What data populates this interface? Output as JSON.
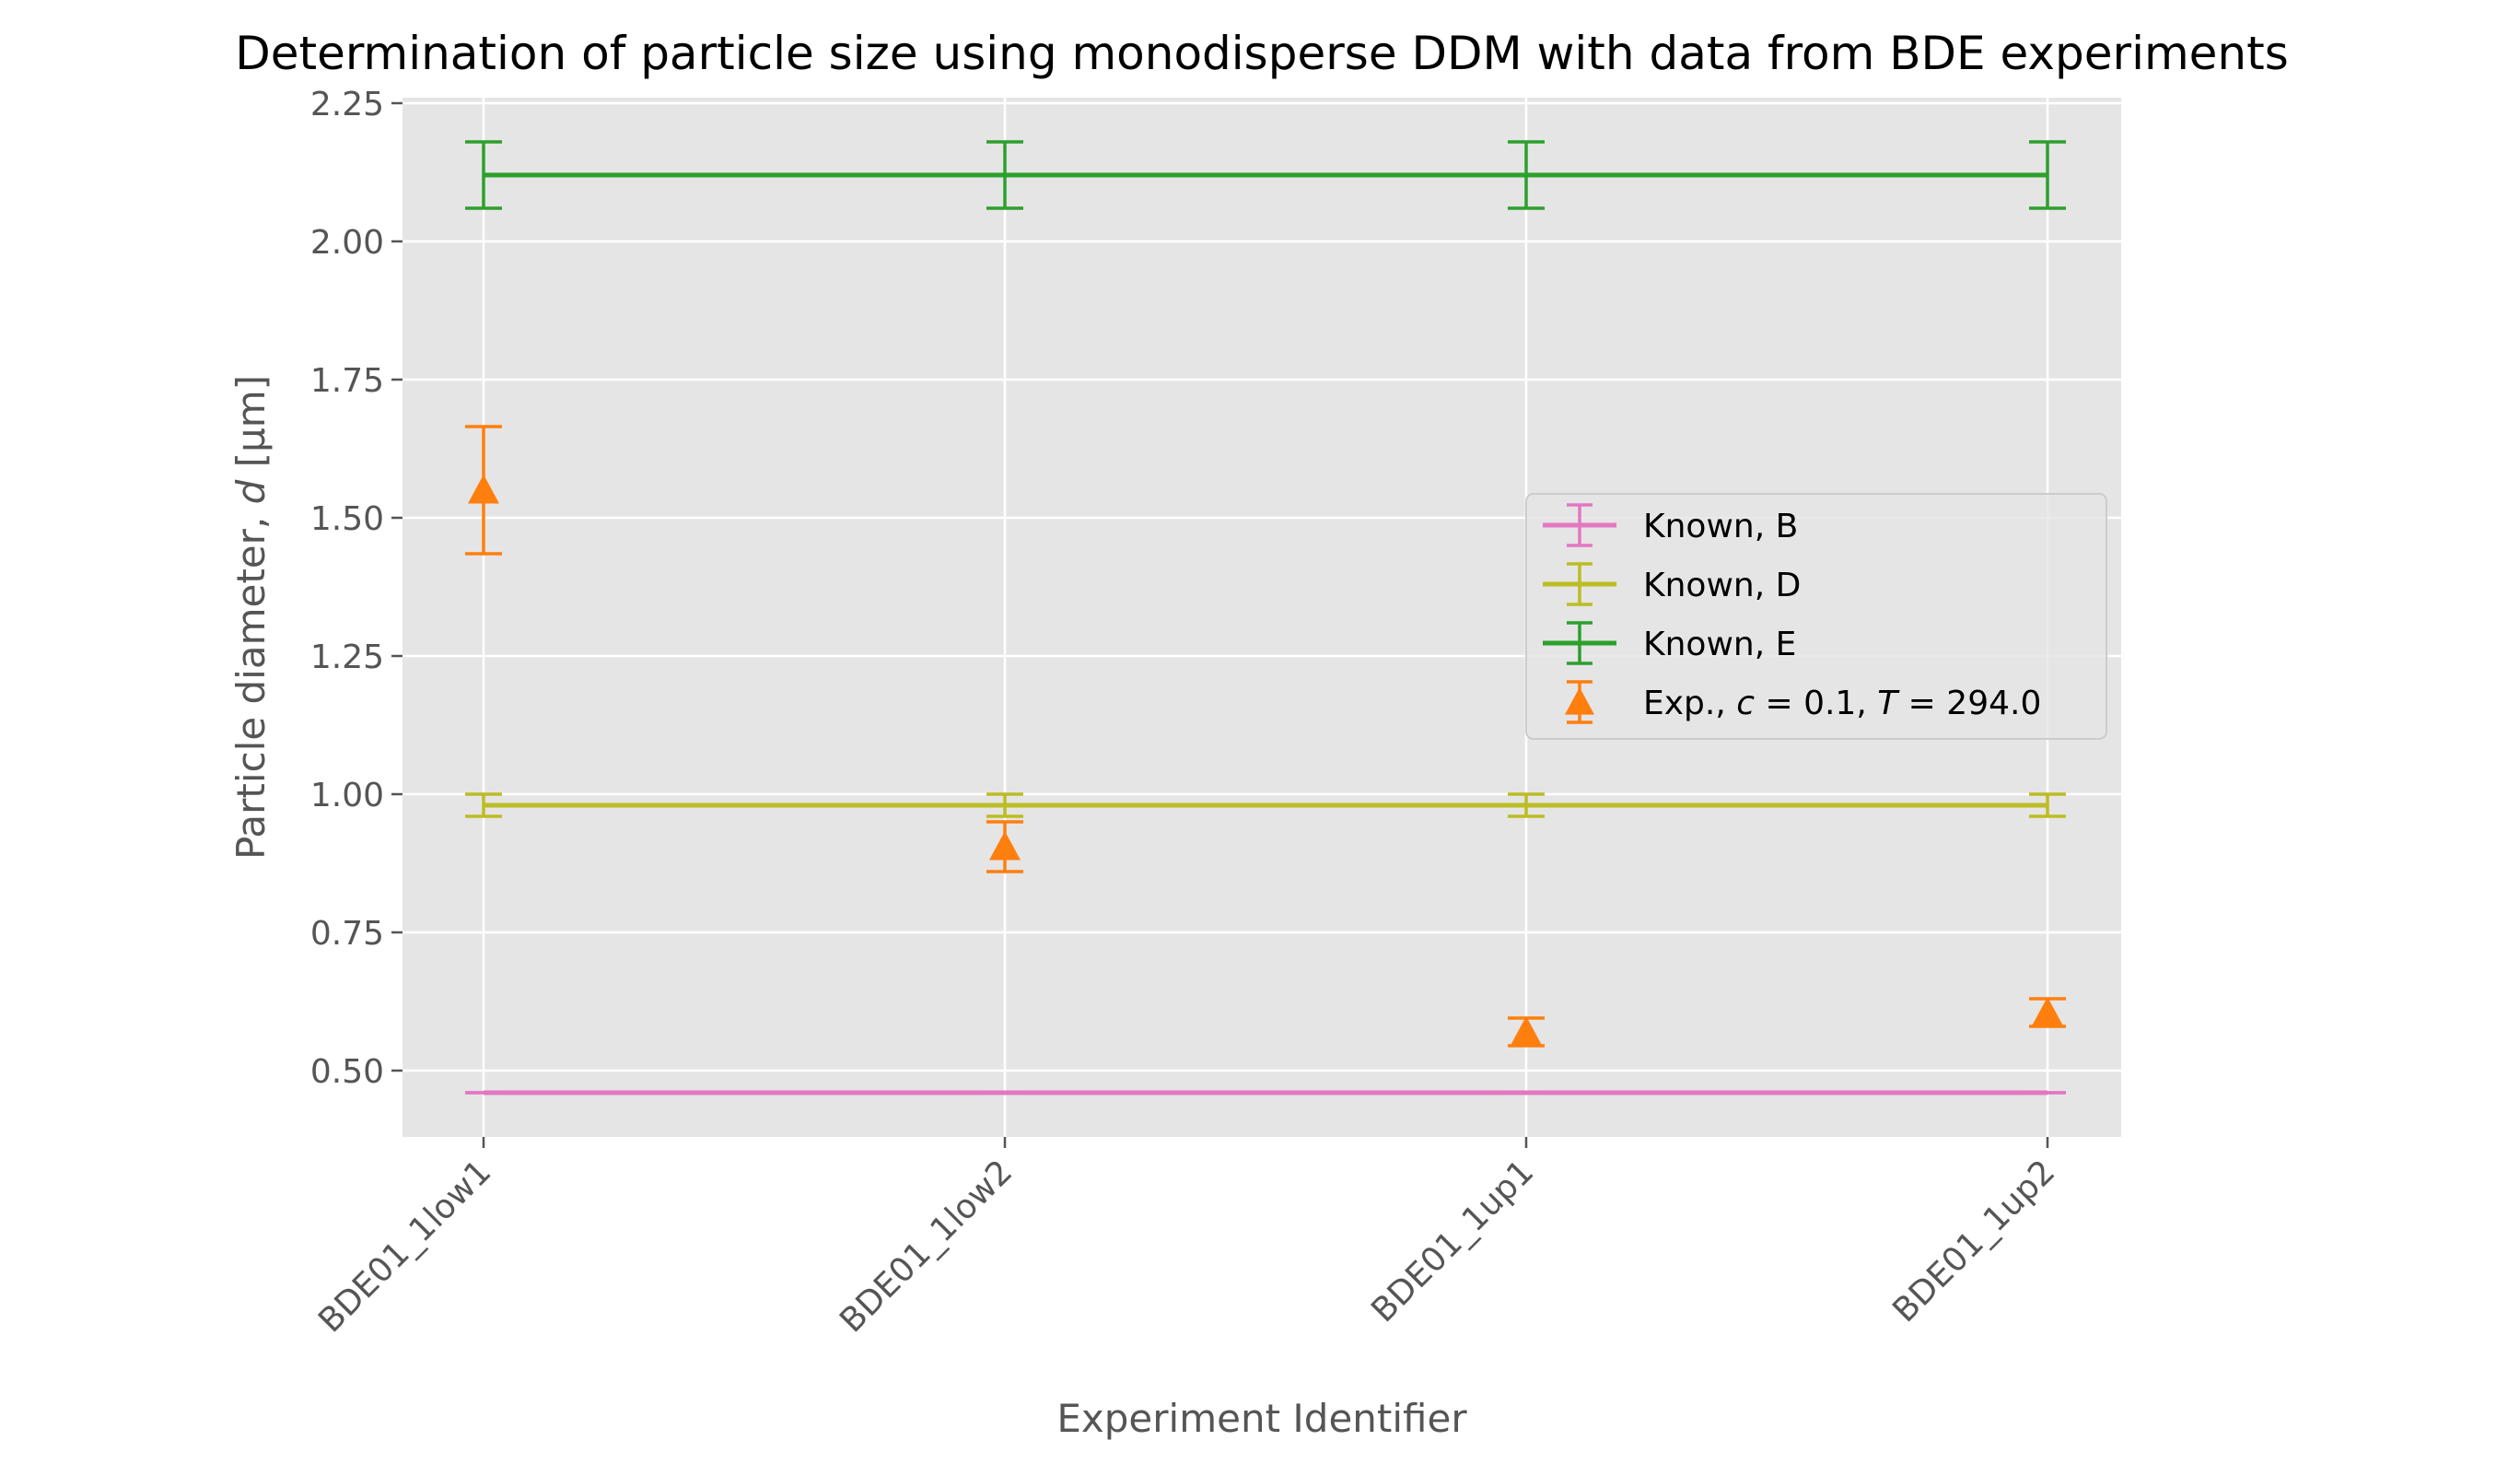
{
  "chart_data": {
    "type": "line",
    "title": "Determination of particle size using monodisperse DDM with data from BDE experiments",
    "xlabel": "Experiment Identifier",
    "ylabel_main": "Particle diameter, ",
    "ylabel_var": "d",
    "ylabel_unit": " [μm]",
    "categories": [
      "BDE01_1low1",
      "BDE01_1low2",
      "BDE01_1up1",
      "BDE01_1up2"
    ],
    "ylim": [
      0.38,
      2.26
    ],
    "yticks": [
      0.5,
      0.75,
      1.0,
      1.25,
      1.5,
      1.75,
      2.0,
      2.25
    ],
    "ytick_labels": [
      "0.50",
      "0.75",
      "1.00",
      "1.25",
      "1.50",
      "1.75",
      "2.00",
      "2.25"
    ],
    "grid": true,
    "legend_position": "center-right",
    "series": [
      {
        "name": "Known, B",
        "color": "#e377c2",
        "style": "line",
        "values": [
          0.46,
          0.46,
          0.46,
          0.46
        ],
        "errors": [
          0.0,
          0.0,
          0.0,
          0.0
        ]
      },
      {
        "name": "Known, D",
        "color": "#bcbd22",
        "style": "line",
        "values": [
          0.98,
          0.98,
          0.98,
          0.98
        ],
        "errors": [
          0.02,
          0.02,
          0.02,
          0.02
        ]
      },
      {
        "name": "Known, E",
        "color": "#2ca02c",
        "style": "line",
        "values": [
          2.12,
          2.12,
          2.12,
          2.12
        ],
        "errors": [
          0.06,
          0.06,
          0.06,
          0.06
        ]
      },
      {
        "name": "Exp., c = 0.1, T = 294.0",
        "name_parts": [
          "Exp., ",
          "c",
          " = 0.1, ",
          "T",
          " = 294.0"
        ],
        "color": "#ff7f0e",
        "style": "marker",
        "values": [
          1.55,
          0.905,
          0.57,
          0.605
        ],
        "errors": [
          0.115,
          0.045,
          0.025,
          0.025
        ]
      }
    ]
  }
}
